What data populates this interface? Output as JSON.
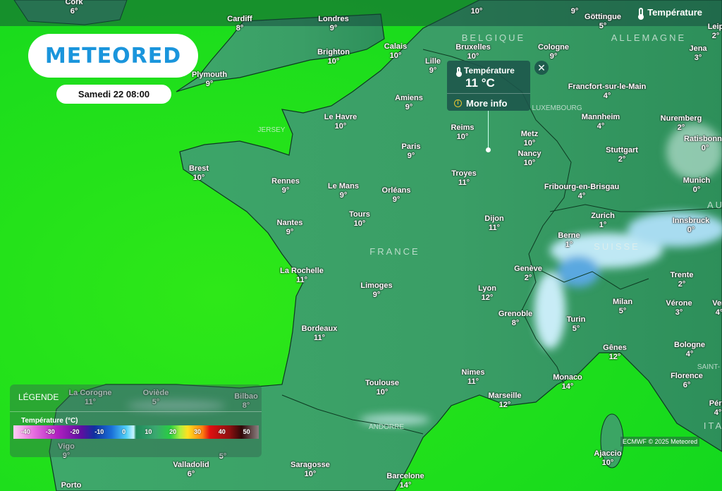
{
  "top_bar": {
    "layer_label": "Température",
    "layer_icon": "thermometer-icon"
  },
  "brand": {
    "logo": "METEORED",
    "date": "Samedi 22 08:00"
  },
  "popup": {
    "title": "Température",
    "value": "11 °C",
    "more_info": "More info",
    "close_icon": "close-icon"
  },
  "legend": {
    "heading": "LÉGENDE",
    "subtitle": "Température (°C)",
    "ticks": [
      "-40",
      "-30",
      "-20",
      "-10",
      "0",
      "10",
      "20",
      "30",
      "40",
      "50"
    ]
  },
  "attribution": "ECMWF © 2025 Meteored",
  "colors": {
    "sea": "#1fe31a",
    "land": "#3aa06a",
    "brand": "#1a95dc",
    "popup": "#1c554b"
  },
  "countries": [
    "FRANCE",
    "ALLEMAGNE",
    "SUISSE",
    "BELGIQUE",
    "LUXEMBOURG",
    "JERSEY",
    "ANDORRE",
    "ITA",
    "SAINT-",
    "AU"
  ],
  "cities": [
    {
      "name": "Cork",
      "temp": "6°"
    },
    {
      "name": "Cardiff",
      "temp": "8°"
    },
    {
      "name": "Londres",
      "temp": "9°"
    },
    {
      "name": "",
      "temp": "10°"
    },
    {
      "name": "",
      "temp": "9°"
    },
    {
      "name": "Göttingue",
      "temp": "5°"
    },
    {
      "name": "Leip",
      "temp": "2°"
    },
    {
      "name": "Brighton",
      "temp": "10°"
    },
    {
      "name": "Calais",
      "temp": "10°"
    },
    {
      "name": "Bruxelles",
      "temp": "10°"
    },
    {
      "name": "Cologne",
      "temp": "9°"
    },
    {
      "name": "Jena",
      "temp": "3°"
    },
    {
      "name": "Plymouth",
      "temp": "9°"
    },
    {
      "name": "Lille",
      "temp": "9°"
    },
    {
      "name": "Francfort-sur-le-Main",
      "temp": "4°"
    },
    {
      "name": "Amiens",
      "temp": "9°"
    },
    {
      "name": "Le Havre",
      "temp": "10°"
    },
    {
      "name": "Mannheim",
      "temp": "4°"
    },
    {
      "name": "Nuremberg",
      "temp": "2°"
    },
    {
      "name": "Reims",
      "temp": "10°"
    },
    {
      "name": "Metz",
      "temp": "10°"
    },
    {
      "name": "Ratisbonne",
      "temp": "0°"
    },
    {
      "name": "Paris",
      "temp": "9°"
    },
    {
      "name": "Stuttgart",
      "temp": "2°"
    },
    {
      "name": "Nancy",
      "temp": "10°"
    },
    {
      "name": "Brest",
      "temp": "10°"
    },
    {
      "name": "Troyes",
      "temp": "11°"
    },
    {
      "name": "Munich",
      "temp": "0°"
    },
    {
      "name": "Rennes",
      "temp": "9°"
    },
    {
      "name": "Le Mans",
      "temp": "9°"
    },
    {
      "name": "Fribourg-en-Brisgau",
      "temp": "4°"
    },
    {
      "name": "Orléans",
      "temp": "9°"
    },
    {
      "name": "Tours",
      "temp": "10°"
    },
    {
      "name": "Zurich",
      "temp": "1°"
    },
    {
      "name": "Dijon",
      "temp": "11°"
    },
    {
      "name": "Innsbruck",
      "temp": "0°"
    },
    {
      "name": "Nantes",
      "temp": "9°"
    },
    {
      "name": "Berne",
      "temp": "1°"
    },
    {
      "name": "Genève",
      "temp": "2°"
    },
    {
      "name": "La Rochelle",
      "temp": "11°"
    },
    {
      "name": "Trente",
      "temp": "2°"
    },
    {
      "name": "Limoges",
      "temp": "9°"
    },
    {
      "name": "Lyon",
      "temp": "12°"
    },
    {
      "name": "Milan",
      "temp": "5°"
    },
    {
      "name": "Vérone",
      "temp": "3°"
    },
    {
      "name": "Ven",
      "temp": "4°"
    },
    {
      "name": "Grenoble",
      "temp": "8°"
    },
    {
      "name": "Turin",
      "temp": "5°"
    },
    {
      "name": "Bordeaux",
      "temp": "11°"
    },
    {
      "name": "Bologne",
      "temp": "4°"
    },
    {
      "name": "Gênes",
      "temp": "12°"
    },
    {
      "name": "Nimes",
      "temp": "11°"
    },
    {
      "name": "Monaco",
      "temp": "14°"
    },
    {
      "name": "Florence",
      "temp": "6°"
    },
    {
      "name": "Toulouse",
      "temp": "10°"
    },
    {
      "name": "La Corogne",
      "temp": "11°"
    },
    {
      "name": "Oviède",
      "temp": "5°"
    },
    {
      "name": "Bilbao",
      "temp": "8°"
    },
    {
      "name": "Marseille",
      "temp": "12°"
    },
    {
      "name": "Péro",
      "temp": "4°"
    },
    {
      "name": "Vigo",
      "temp": "9°"
    },
    {
      "name": "",
      "temp": "5°"
    },
    {
      "name": "Ajaccio",
      "temp": "10°"
    },
    {
      "name": "Valladolid",
      "temp": "6°"
    },
    {
      "name": "Saragosse",
      "temp": "10°"
    },
    {
      "name": "Porto",
      "temp": ""
    },
    {
      "name": "Barcelone",
      "temp": "14°"
    }
  ]
}
